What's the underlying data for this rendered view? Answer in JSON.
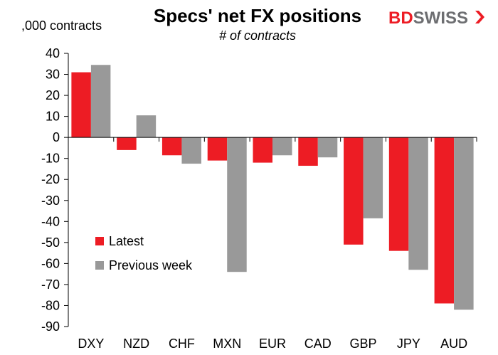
{
  "chart_data": {
    "type": "bar",
    "title": "Specs' net FX positions",
    "subtitle": "# of contracts",
    "ylabel": ",000 contracts",
    "categories": [
      "DXY",
      "NZD",
      "CHF",
      "MXN",
      "EUR",
      "CAD",
      "GBP",
      "JPY",
      "AUD"
    ],
    "series": [
      {
        "name": "Latest",
        "color": "#ed1c24",
        "values": [
          31,
          -6,
          -8.5,
          -11,
          -12,
          -13.5,
          -51,
          -54,
          -79
        ]
      },
      {
        "name": "Previous week",
        "color": "#999999",
        "values": [
          34.5,
          10.5,
          -12.5,
          -64,
          -8.5,
          -9.5,
          -38.5,
          -63,
          -82
        ]
      }
    ],
    "ylim": [
      -90,
      40
    ],
    "yticks": [
      40,
      30,
      20,
      10,
      0,
      -10,
      -20,
      -30,
      -40,
      -50,
      -60,
      -70,
      -80,
      -90
    ],
    "legend_position": "lower-left",
    "grid": false
  },
  "logo": {
    "text_bd": "BD",
    "text_swiss": "SWISS",
    "color": "#ed1c24"
  }
}
